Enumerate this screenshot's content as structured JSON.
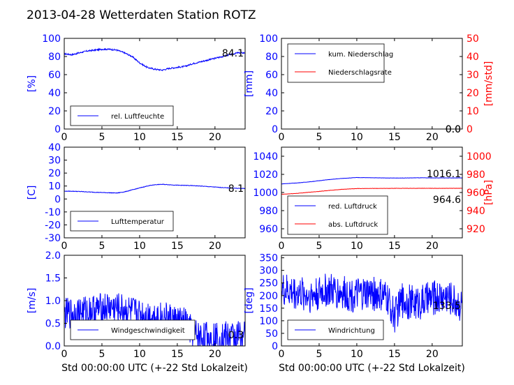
{
  "figure": {
    "title": "2013-04-28 Wetterdaten Station ROTZ",
    "colors": {
      "left": "#0000ff",
      "right": "#ff0000",
      "axis": "#000000"
    }
  },
  "chart_data": [
    {
      "type": "line",
      "xlim": [
        0,
        24
      ],
      "xticks": [
        0,
        5,
        10,
        15,
        20
      ],
      "ylabel": "[%]",
      "ylim": [
        0,
        100
      ],
      "yticks": [
        0,
        20,
        40,
        60,
        80,
        100
      ],
      "legend": {
        "position": "lower-left",
        "entries": [
          "rel. Luftfeuchte"
        ]
      },
      "last_values": [
        "84.1"
      ],
      "series": [
        {
          "name": "rel. Luftfeuchte",
          "axis": "left",
          "color": "#0000ff",
          "noise": 0.8,
          "x": [
            0,
            1,
            2,
            3,
            4,
            5,
            6,
            7,
            8,
            9,
            10,
            11,
            12,
            13,
            14,
            15,
            16,
            17,
            18,
            19,
            20,
            21,
            22,
            23,
            24
          ],
          "y": [
            83,
            82,
            84,
            86,
            87,
            88,
            88,
            87,
            84,
            80,
            73,
            68,
            66,
            65,
            67,
            68,
            69,
            72,
            74,
            76,
            78,
            80,
            82,
            84,
            84
          ]
        }
      ]
    },
    {
      "type": "line",
      "xlim": [
        0,
        24
      ],
      "xticks": [
        0,
        5,
        10,
        15,
        20
      ],
      "ylabel": "[mm]",
      "ylim": [
        0,
        100
      ],
      "yticks": [
        0,
        20,
        40,
        60,
        80,
        100
      ],
      "ylabel_right": "[mm/std]",
      "ylim_right": [
        0,
        50
      ],
      "yticks_right": [
        0,
        10,
        20,
        30,
        40,
        50
      ],
      "legend": {
        "position": "upper-left",
        "entries": [
          "kum. Niederschlag",
          "Niederschlagsrate"
        ]
      },
      "last_values": [
        "0.0",
        "0.0"
      ],
      "series": [
        {
          "name": "kum. Niederschlag",
          "axis": "left",
          "color": "#0000ff",
          "noise": 0,
          "x": [
            0,
            24
          ],
          "y": [
            0,
            0
          ]
        },
        {
          "name": "Niederschlagsrate",
          "axis": "right",
          "color": "#ff0000",
          "noise": 0,
          "x": [
            0,
            24
          ],
          "y": [
            0,
            0
          ]
        }
      ]
    },
    {
      "type": "line",
      "xlim": [
        0,
        24
      ],
      "xticks": [
        0,
        5,
        10,
        15,
        20
      ],
      "ylabel": "[C]",
      "ylim": [
        -30,
        40
      ],
      "yticks": [
        -30,
        -20,
        -10,
        0,
        10,
        20,
        30,
        40
      ],
      "legend": {
        "position": "lower-left",
        "entries": [
          "Lufttemperatur"
        ]
      },
      "last_values": [
        "8.1"
      ],
      "series": [
        {
          "name": "Lufttemperatur",
          "axis": "left",
          "color": "#0000ff",
          "noise": 0.2,
          "x": [
            0,
            1,
            2,
            3,
            4,
            5,
            6,
            7,
            8,
            9,
            10,
            11,
            12,
            13,
            14,
            15,
            16,
            17,
            18,
            19,
            20,
            21,
            22,
            23,
            24
          ],
          "y": [
            6,
            6,
            5.8,
            5.5,
            5.2,
            5,
            4.8,
            4.6,
            5.5,
            7,
            8.5,
            10,
            11,
            11.3,
            11,
            10.6,
            10.5,
            10.3,
            10,
            9.6,
            9.2,
            8.8,
            8.5,
            8.2,
            8.1
          ]
        }
      ]
    },
    {
      "type": "line",
      "xlim": [
        0,
        24
      ],
      "xticks": [
        0,
        5,
        10,
        15,
        20
      ],
      "ylabel": "",
      "ylim": [
        950,
        1050
      ],
      "yticks": [
        960,
        980,
        1000,
        1020,
        1040
      ],
      "ylabel_right": "[hPa]",
      "ylim_right": [
        910,
        1010
      ],
      "yticks_right": [
        920,
        940,
        960,
        980,
        1000
      ],
      "legend": {
        "position": "lower-left",
        "entries": [
          "red. Luftdruck",
          "abs. Luftdruck"
        ]
      },
      "last_values": [
        "1016.1",
        "964.6"
      ],
      "series": [
        {
          "name": "red. Luftdruck",
          "axis": "left",
          "color": "#0000ff",
          "noise": 0.15,
          "x": [
            0,
            2,
            4,
            6,
            8,
            10,
            12,
            14,
            16,
            18,
            20,
            22,
            24
          ],
          "y": [
            1009.5,
            1010.5,
            1012,
            1014,
            1015.5,
            1016.5,
            1016.3,
            1016,
            1016,
            1016.2,
            1016.1,
            1016.1,
            1016.1
          ]
        },
        {
          "name": "abs. Luftdruck",
          "axis": "right",
          "color": "#ff0000",
          "noise": 0.15,
          "x": [
            0,
            2,
            4,
            6,
            8,
            10,
            12,
            14,
            16,
            18,
            20,
            22,
            24
          ],
          "y": [
            958,
            959,
            960.5,
            962,
            963.5,
            964.3,
            964.5,
            964.5,
            964.6,
            964.6,
            964.6,
            964.6,
            964.6
          ]
        }
      ]
    },
    {
      "type": "line",
      "xlim": [
        0,
        24
      ],
      "xticks": [
        0,
        5,
        10,
        15,
        20
      ],
      "xlabel": "Std 00:00:00 UTC (+-22 Std Lokalzeit)",
      "ylabel": "[m/s]",
      "ylim": [
        0,
        2
      ],
      "yticks": [
        0.0,
        0.5,
        1.0,
        1.5,
        2.0
      ],
      "legend": {
        "position": "lower-center",
        "entries": [
          "Windgeschwindigkeit"
        ]
      },
      "last_values": [
        "0.3"
      ],
      "series": [
        {
          "name": "Windgeschwindigkeit",
          "axis": "left",
          "color": "#0000ff",
          "noise": 0.35,
          "x": [
            0,
            2,
            4,
            6,
            8,
            10,
            12,
            14,
            16,
            17,
            18,
            20,
            22,
            24
          ],
          "y": [
            0.7,
            0.75,
            0.8,
            0.85,
            0.8,
            0.7,
            0.65,
            0.6,
            0.5,
            0.3,
            0.2,
            0.2,
            0.2,
            0.25
          ]
        }
      ]
    },
    {
      "type": "line",
      "xlim": [
        0,
        24
      ],
      "xticks": [
        0,
        5,
        10,
        15,
        20
      ],
      "xlabel": "Std 00:00:00 UTC (+-22 Std Lokalzeit)",
      "ylabel": "[deg]",
      "ylim": [
        0,
        360
      ],
      "yticks": [
        0,
        50,
        100,
        150,
        200,
        250,
        300,
        350
      ],
      "legend": {
        "position": "lower-left",
        "entries": [
          "Windrichtung"
        ]
      },
      "last_values": [
        "133.5"
      ],
      "series": [
        {
          "name": "Windrichtung",
          "axis": "left",
          "color": "#0000ff",
          "noise": 70,
          "x": [
            0,
            2,
            4,
            6,
            8,
            10,
            12,
            14,
            15,
            16,
            18,
            20,
            22,
            24
          ],
          "y": [
            220,
            210,
            200,
            220,
            210,
            200,
            210,
            190,
            120,
            180,
            170,
            190,
            200,
            160
          ]
        }
      ]
    }
  ]
}
